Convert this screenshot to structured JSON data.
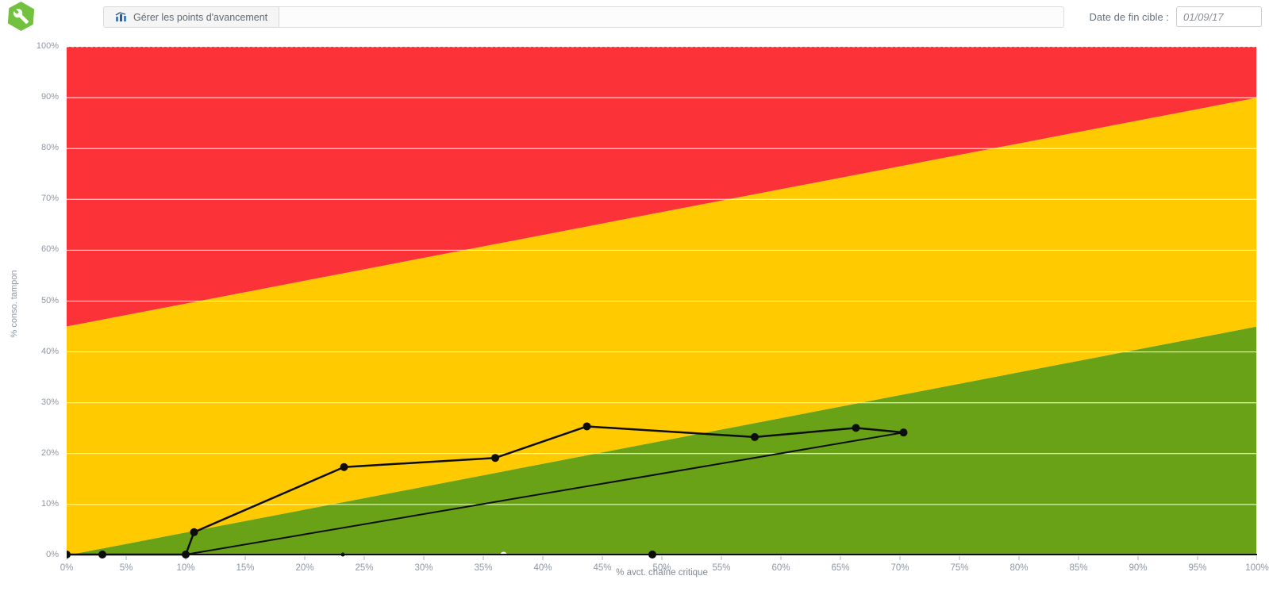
{
  "app_icon": {
    "name": "wrench-hexagon-icon",
    "color": "#72c13f"
  },
  "toolbar": {
    "manage_button_label": "Gérer les points d'avancement",
    "manage_button_icon": "bar-chart-icon",
    "target_date_label": "Date de fin cible :",
    "target_date_value": "01/09/17"
  },
  "chart_data": {
    "type": "line",
    "title": "",
    "xlabel": "% avct. chaîne critique",
    "ylabel": "% conso. tampon",
    "xlim": [
      0,
      100
    ],
    "ylim": [
      0,
      100
    ],
    "grid": "horizontal-white, dashed top border",
    "legend": "none",
    "x_ticks": [
      "0%",
      "5%",
      "10%",
      "15%",
      "20%",
      "25%",
      "30%",
      "35%",
      "40%",
      "45%",
      "50%",
      "55%",
      "60%",
      "65%",
      "70%",
      "75%",
      "80%",
      "85%",
      "90%",
      "95%",
      "100%"
    ],
    "y_ticks": [
      "0%",
      "10%",
      "20%",
      "30%",
      "40%",
      "50%",
      "60%",
      "70%",
      "80%",
      "90%",
      "100%"
    ],
    "zones": [
      {
        "name": "green-ok-zone",
        "color": "#69a216",
        "top_left": 0,
        "top_right": 45
      },
      {
        "name": "yellow-watch-zone",
        "color": "#ffca00",
        "top_left": 45,
        "top_right": 90
      },
      {
        "name": "red-action-zone",
        "color": "#fb3339",
        "top_left": 100,
        "top_right": 100
      }
    ],
    "series": [
      {
        "name": "buffer-consumption-curve",
        "color": "#0d0d0d",
        "width": 2.5,
        "marker": "filled-circle",
        "marker_radius": 5,
        "points": [
          [
            0,
            0
          ],
          [
            3,
            0
          ],
          [
            10,
            0
          ],
          [
            10.7,
            4.4
          ],
          [
            23.3,
            17.2
          ],
          [
            36,
            19
          ],
          [
            43.7,
            25.2
          ],
          [
            57.8,
            23.1
          ],
          [
            66.3,
            24.9
          ],
          [
            70.3,
            24
          ]
        ]
      },
      {
        "name": "projection-line",
        "color": "#0d0d0d",
        "width": 2,
        "marker": "none",
        "marker_radius": 0,
        "points": [
          [
            10,
            0
          ],
          [
            70.3,
            24
          ]
        ]
      }
    ],
    "axis_markers": [
      {
        "x": 23.2,
        "y": 0,
        "style": "small-black",
        "radius": 2.5
      },
      {
        "x": 36.7,
        "y": 0,
        "style": "open-white",
        "radius": 4.5
      },
      {
        "x": 49.2,
        "y": 0,
        "style": "filled-black",
        "radius": 5
      }
    ],
    "colors": {
      "gridline": "#ffffff",
      "top_border_dashed": "#a6adb3",
      "axis_line": "#111111",
      "tick_mark": "#c6ccd2",
      "tick_text": "#8d97a3"
    }
  }
}
